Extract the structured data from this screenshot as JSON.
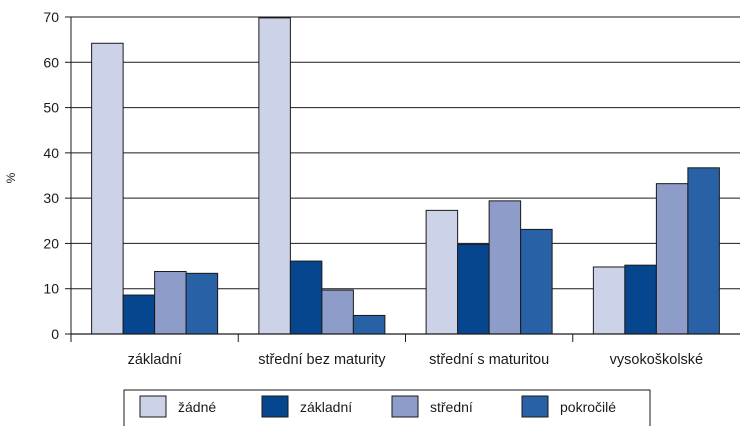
{
  "chart_data": {
    "type": "bar",
    "title": "",
    "xlabel": "",
    "ylabel": "%",
    "ylim": [
      0,
      70
    ],
    "yticks": [
      0,
      10,
      20,
      30,
      40,
      50,
      60,
      70
    ],
    "grid": true,
    "legend_position": "bottom",
    "categories": [
      "základní",
      "střední bez maturity",
      "střední s maturitou",
      "vysokoškolské"
    ],
    "series": [
      {
        "name": "žádné",
        "color": "#ccd3e8",
        "values": [
          64.2,
          69.8,
          27.3,
          14.8
        ]
      },
      {
        "name": "základní",
        "color": "#06468f",
        "values": [
          8.6,
          16.1,
          19.8,
          15.2
        ]
      },
      {
        "name": "střední",
        "color": "#8d9cc9",
        "values": [
          13.8,
          9.7,
          29.4,
          33.2
        ]
      },
      {
        "name": "pokročilé",
        "color": "#2961a6",
        "values": [
          13.4,
          4.1,
          23.1,
          36.7
        ]
      }
    ]
  }
}
